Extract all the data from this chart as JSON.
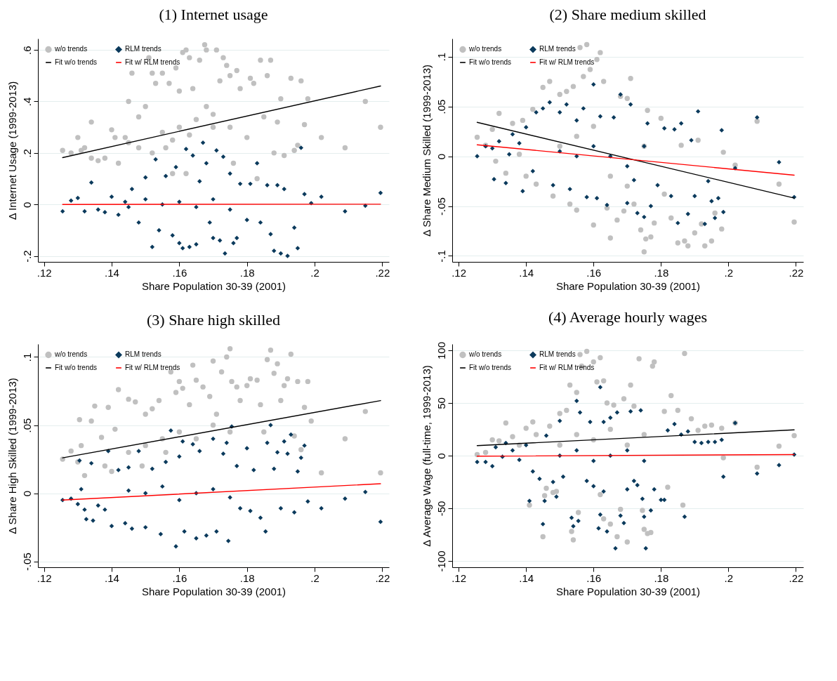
{
  "chart_data": [
    {
      "type": "scatter",
      "title": "(1) Internet usage",
      "xlabel": "Share Population 30-39 (2001)",
      "ylabel": "Δ Internet Usage (1999-2013)",
      "xlim": [
        0.1182,
        0.222
      ],
      "ylim": [
        -0.223,
        0.644
      ],
      "xticks": [
        {
          "value": 0.12,
          "label": ".12"
        },
        {
          "value": 0.14,
          "label": ".14"
        },
        {
          "value": 0.16,
          "label": ".16"
        },
        {
          "value": 0.18,
          "label": ".18"
        },
        {
          "value": 0.2,
          "label": ".2"
        },
        {
          "value": 0.22,
          "label": ".22"
        }
      ],
      "yticks": [
        {
          "value": -0.2,
          "label": "-.2"
        },
        0,
        {
          "value": 0.2,
          "label": ".2"
        },
        {
          "value": 0.4,
          "label": ".4"
        },
        {
          "value": 0.6,
          "label": ".6"
        }
      ],
      "grid": "y",
      "legend": "top left",
      "series": [
        {
          "name": "w/o trends",
          "color": "#c0c0c0",
          "marker": "circle",
          "x": [
            0.1255,
            0.128,
            0.13,
            0.131,
            0.132,
            0.134,
            0.134,
            0.136,
            0.138,
            0.14,
            0.141,
            0.142,
            0.144,
            0.145,
            0.146,
            0.148,
            0.15,
            0.151,
            0.152,
            0.153,
            0.155,
            0.156,
            0.157,
            0.159,
            0.16,
            0.161,
            0.162,
            0.163,
            0.164,
            0.166,
            0.1675,
            0.168,
            0.17,
            0.171,
            0.172,
            0.173,
            0.174,
            0.175,
            0.176,
            0.177,
            0.178,
            0.18,
            0.181,
            0.182,
            0.183,
            0.184,
            0.185,
            0.186,
            0.187,
            0.188,
            0.189,
            0.19,
            0.191,
            0.193,
            0.194,
            0.195,
            0.196,
            0.197,
            0.198,
            0.202,
            0.209,
            0.215,
            0.2195,
            0.155,
            0.16,
            0.165,
            0.17,
            0.158,
            0.148,
            0.152,
            0.163,
            0.168,
            0.175,
            0.145,
            0.162,
            0.158
          ],
          "values": [
            0.21,
            0.2,
            0.26,
            0.21,
            0.22,
            0.32,
            0.18,
            0.17,
            0.18,
            0.29,
            0.26,
            0.16,
            0.26,
            0.4,
            0.51,
            0.34,
            0.38,
            0.57,
            0.51,
            0.47,
            0.51,
            0.22,
            0.47,
            0.53,
            0.44,
            0.59,
            0.6,
            0.57,
            0.45,
            0.56,
            0.62,
            0.6,
            0.3,
            0.6,
            0.48,
            0.57,
            0.54,
            0.5,
            0.16,
            0.52,
            0.45,
            0.26,
            0.49,
            0.47,
            0.1,
            0.56,
            0.34,
            0.5,
            0.56,
            0.2,
            0.32,
            0.41,
            0.19,
            0.49,
            0.21,
            0.23,
            0.48,
            0.31,
            0.41,
            0.26,
            0.22,
            0.4,
            0.3,
            0.28,
            0.3,
            0.33,
            0.35,
            0.25,
            0.22,
            0.2,
            0.27,
            0.38,
            0.3,
            0.24,
            0.12,
            0.12
          ]
        },
        {
          "name": "Fit w/o trends",
          "type": "line",
          "color": "#000000",
          "x": [
            0.1255,
            0.2195
          ],
          "values": [
            0.182,
            0.46
          ]
        },
        {
          "name": "RLM trends",
          "color": "#0b3a5c",
          "marker": "diamond",
          "x": [
            0.1255,
            0.128,
            0.13,
            0.132,
            0.134,
            0.136,
            0.138,
            0.14,
            0.142,
            0.144,
            0.146,
            0.148,
            0.15,
            0.152,
            0.153,
            0.154,
            0.156,
            0.158,
            0.159,
            0.16,
            0.161,
            0.162,
            0.163,
            0.164,
            0.165,
            0.166,
            0.167,
            0.168,
            0.169,
            0.17,
            0.171,
            0.172,
            0.173,
            0.1735,
            0.175,
            0.176,
            0.177,
            0.178,
            0.18,
            0.181,
            0.183,
            0.184,
            0.186,
            0.187,
            0.188,
            0.189,
            0.19,
            0.191,
            0.192,
            0.194,
            0.195,
            0.196,
            0.197,
            0.199,
            0.202,
            0.209,
            0.215,
            0.2195,
            0.155,
            0.16,
            0.165,
            0.17,
            0.175,
            0.15,
            0.145
          ],
          "values": [
            -0.027,
            0.015,
            0.025,
            -0.027,
            0.085,
            -0.02,
            -0.03,
            0.03,
            -0.04,
            0.01,
            0.06,
            -0.07,
            0.105,
            -0.165,
            0.175,
            -0.1,
            0.11,
            -0.12,
            0.145,
            -0.15,
            -0.17,
            0.215,
            -0.165,
            0.19,
            -0.155,
            0.09,
            0.24,
            0.16,
            -0.07,
            -0.13,
            0.21,
            -0.14,
            0.185,
            -0.19,
            0.12,
            -0.15,
            -0.13,
            0.08,
            -0.06,
            0.08,
            0.16,
            -0.07,
            0.075,
            -0.115,
            -0.18,
            0.075,
            -0.19,
            0.06,
            -0.2,
            -0.09,
            -0.17,
            0.22,
            0.04,
            0.005,
            0.03,
            -0.027,
            -0.005,
            0.045,
            0,
            0.01,
            -0.01,
            0.02,
            -0.02,
            0.02,
            -0.01
          ]
        },
        {
          "name": "Fit w/ RLM trends",
          "type": "line",
          "color": "#ff0000",
          "x": [
            0.1255,
            0.2195
          ],
          "values": [
            0,
            0.001
          ]
        }
      ]
    },
    {
      "type": "scatter",
      "title": "(2) Share medium skilled",
      "xlabel": "Share Population 30-39 (2001)",
      "ylabel": "Δ Share Medium Skilled (1999-2013)",
      "xlim": [
        0.1181,
        0.2222
      ],
      "ylim": [
        -0.106,
        0.118
      ],
      "xticks": [
        {
          "value": 0.12,
          "label": ".12"
        },
        {
          "value": 0.14,
          "label": ".14"
        },
        {
          "value": 0.16,
          "label": ".16"
        },
        {
          "value": 0.18,
          "label": ".18"
        },
        {
          "value": 0.2,
          "label": ".2"
        },
        {
          "value": 0.22,
          "label": ".22"
        }
      ],
      "yticks": [
        {
          "value": -0.1,
          "label": "-.1"
        },
        {
          "value": -0.05,
          "label": "-.05"
        },
        0,
        {
          "value": 0.05,
          "label": ".05"
        },
        {
          "value": 0.1,
          "label": ".1"
        }
      ],
      "grid": "y",
      "legend": "top left",
      "series": [
        {
          "name": "w/o trends",
          "color": "#c0c0c0",
          "marker": "circle",
          "x": [
            0.1255,
            0.128,
            0.13,
            0.131,
            0.132,
            0.134,
            0.136,
            0.138,
            0.139,
            0.14,
            0.142,
            0.143,
            0.145,
            0.147,
            0.148,
            0.15,
            0.152,
            0.153,
            0.154,
            0.155,
            0.156,
            0.157,
            0.158,
            0.159,
            0.16,
            0.161,
            0.162,
            0.163,
            0.164,
            0.165,
            0.167,
            0.168,
            0.169,
            0.17,
            0.171,
            0.172,
            0.174,
            0.175,
            0.1755,
            0.176,
            0.177,
            0.178,
            0.18,
            0.181,
            0.183,
            0.185,
            0.186,
            0.187,
            0.188,
            0.19,
            0.191,
            0.192,
            0.193,
            0.195,
            0.196,
            0.198,
            0.1985,
            0.202,
            0.2085,
            0.215,
            0.2195,
            0.155,
            0.16,
            0.165,
            0.17,
            0.15,
            0.175
          ],
          "values": [
            0.019,
            0.011,
            0.027,
            -0.005,
            0.043,
            -0.017,
            0.033,
            0.002,
            0.036,
            -0.02,
            0.047,
            -0.028,
            0.069,
            0.075,
            -0.04,
            0.062,
            0.065,
            -0.048,
            0.07,
            -0.054,
            0.109,
            0.08,
            0.112,
            0.087,
            -0.069,
            0.097,
            0.104,
            0.075,
            -0.052,
            -0.082,
            -0.064,
            0.06,
            -0.055,
            0.058,
            0.078,
            -0.048,
            -0.074,
            -0.096,
            -0.083,
            0.046,
            -0.081,
            -0.067,
            0.038,
            -0.038,
            -0.062,
            -0.087,
            0.011,
            -0.085,
            -0.09,
            -0.077,
            0.016,
            -0.068,
            -0.09,
            -0.085,
            -0.057,
            -0.073,
            0.004,
            -0.009,
            0.035,
            -0.028,
            -0.066,
            0.02,
            0.03,
            -0.02,
            -0.03,
            0.01,
            0.01
          ]
        },
        {
          "name": "Fit w/o trends",
          "type": "line",
          "color": "#000000",
          "x": [
            0.1255,
            0.2195
          ],
          "values": [
            0.034,
            -0.042
          ]
        },
        {
          "name": "RLM trends",
          "color": "#0b3a5c",
          "marker": "diamond",
          "x": [
            0.1255,
            0.128,
            0.13,
            0.1305,
            0.132,
            0.134,
            0.135,
            0.136,
            0.138,
            0.139,
            0.14,
            0.142,
            0.143,
            0.145,
            0.147,
            0.148,
            0.15,
            0.152,
            0.153,
            0.155,
            0.157,
            0.158,
            0.16,
            0.161,
            0.162,
            0.164,
            0.166,
            0.168,
            0.17,
            0.171,
            0.172,
            0.173,
            0.175,
            0.176,
            0.177,
            0.179,
            0.181,
            0.183,
            0.184,
            0.185,
            0.186,
            0.188,
            0.189,
            0.19,
            0.191,
            0.193,
            0.194,
            0.195,
            0.196,
            0.197,
            0.198,
            0.1985,
            0.202,
            0.2085,
            0.215,
            0.2195,
            0.155,
            0.16,
            0.165,
            0.17,
            0.15,
            0.175
          ],
          "values": [
            0,
            0.01,
            0.008,
            -0.023,
            0.015,
            -0.027,
            0.002,
            0.022,
            0.013,
            -0.035,
            0.029,
            -0.015,
            0.044,
            0.048,
            0.054,
            -0.029,
            0.044,
            0.052,
            -0.033,
            0.036,
            0.048,
            -0.041,
            0.072,
            -0.042,
            0.04,
            -0.049,
            0.039,
            0.062,
            -0.047,
            0.052,
            -0.024,
            -0.057,
            -0.061,
            0.033,
            -0.05,
            -0.029,
            0.028,
            -0.04,
            0.027,
            -0.067,
            0.033,
            -0.058,
            0.016,
            -0.04,
            0.045,
            -0.068,
            -0.025,
            -0.045,
            -0.062,
            -0.042,
            0.026,
            -0.056,
            -0.012,
            0.039,
            -0.006,
            -0.041,
            0,
            0.01,
            0,
            -0.01,
            0.005,
            0.01
          ]
        },
        {
          "name": "Fit w/ RLM trends",
          "type": "line",
          "color": "#ff0000",
          "x": [
            0.1255,
            0.2195
          ],
          "values": [
            0.0115,
            -0.019
          ]
        }
      ]
    },
    {
      "type": "scatter",
      "title": "(3) Share high skilled",
      "xlabel": "Share Population 30-39 (2001)",
      "ylabel": "Δ Share High Skilled (1999-2013)",
      "xlim": [
        0.1182,
        0.222
      ],
      "ylim": [
        -0.0543,
        0.1095
      ],
      "xticks": [
        {
          "value": 0.12,
          "label": ".12"
        },
        {
          "value": 0.14,
          "label": ".14"
        },
        {
          "value": 0.16,
          "label": ".16"
        },
        {
          "value": 0.18,
          "label": ".18"
        },
        {
          "value": 0.2,
          "label": ".2"
        },
        {
          "value": 0.22,
          "label": ".22"
        }
      ],
      "yticks": [
        {
          "value": -0.05,
          "label": "-.05"
        },
        0,
        {
          "value": 0.05,
          "label": ".05"
        },
        {
          "value": 0.1,
          "label": ".1"
        }
      ],
      "grid": "y",
      "legend": "top left",
      "series": [
        {
          "name": "w/o trends",
          "color": "#c0c0c0",
          "marker": "circle",
          "x": [
            0.1255,
            0.128,
            0.13,
            0.1305,
            0.131,
            0.132,
            0.134,
            0.135,
            0.137,
            0.138,
            0.139,
            0.14,
            0.141,
            0.142,
            0.145,
            0.147,
            0.149,
            0.15,
            0.152,
            0.154,
            0.156,
            0.1575,
            0.159,
            0.16,
            0.161,
            0.163,
            0.164,
            0.165,
            0.167,
            0.169,
            0.17,
            0.171,
            0.1725,
            0.174,
            0.175,
            0.1755,
            0.177,
            0.178,
            0.18,
            0.181,
            0.183,
            0.184,
            0.185,
            0.186,
            0.187,
            0.188,
            0.189,
            0.19,
            0.191,
            0.192,
            0.193,
            0.194,
            0.195,
            0.196,
            0.197,
            0.198,
            0.199,
            0.202,
            0.209,
            0.215,
            0.2195,
            0.15,
            0.155,
            0.16,
            0.165,
            0.17,
            0.175,
            0.145
          ],
          "values": [
            0.025,
            0.031,
            0.023,
            0.054,
            0.035,
            0.013,
            0.053,
            0.064,
            0.041,
            0.02,
            0.063,
            0.016,
            0.047,
            0.076,
            0.069,
            0.067,
            0.02,
            0.058,
            0.062,
            0.068,
            0.03,
            0.089,
            0.074,
            0.082,
            0.077,
            0.065,
            0.094,
            0.083,
            0.078,
            0.071,
            0.097,
            0.058,
            0.089,
            0.1,
            0.106,
            0.082,
            0.078,
            0.068,
            0.079,
            0.084,
            0.083,
            0.065,
            0.045,
            0.098,
            0.105,
            0.088,
            0.095,
            0.068,
            0.079,
            0.084,
            0.102,
            0.042,
            0.082,
            0.032,
            0.063,
            0.082,
            0.053,
            0.015,
            0.04,
            0.06,
            0.015,
            0.035,
            0.04,
            0.045,
            0.04,
            0.05,
            0.045,
            0.03
          ]
        },
        {
          "name": "Fit w/o trends",
          "type": "line",
          "color": "#000000",
          "x": [
            0.1255,
            0.2195
          ],
          "values": [
            0.026,
            0.068
          ]
        },
        {
          "name": "RLM trends",
          "color": "#0b3a5c",
          "marker": "diamond",
          "x": [
            0.1255,
            0.128,
            0.13,
            0.1305,
            0.131,
            0.132,
            0.1325,
            0.134,
            0.1345,
            0.136,
            0.138,
            0.139,
            0.14,
            0.142,
            0.144,
            0.145,
            0.146,
            0.148,
            0.15,
            0.152,
            0.1545,
            0.156,
            0.1575,
            0.159,
            0.16,
            0.161,
            0.1615,
            0.164,
            0.165,
            0.166,
            0.168,
            0.17,
            0.171,
            0.173,
            0.174,
            0.1745,
            0.1755,
            0.177,
            0.178,
            0.18,
            0.181,
            0.182,
            0.184,
            0.1855,
            0.186,
            0.187,
            0.188,
            0.189,
            0.19,
            0.191,
            0.192,
            0.193,
            0.194,
            0.195,
            0.196,
            0.197,
            0.198,
            0.202,
            0.209,
            0.215,
            0.2195,
            0.15,
            0.155,
            0.16,
            0.165,
            0.17,
            0.175,
            0.145
          ],
          "values": [
            -0.005,
            -0.004,
            -0.008,
            0.024,
            0.003,
            -0.012,
            -0.019,
            0.022,
            -0.02,
            -0.009,
            -0.012,
            0.031,
            -0.024,
            0.017,
            -0.022,
            0.019,
            -0.026,
            0.031,
            -0.025,
            0.018,
            -0.03,
            0.023,
            0.046,
            -0.039,
            0.027,
            0.038,
            -0.028,
            0.036,
            -0.033,
            0.031,
            -0.031,
            0.04,
            -0.028,
            0.029,
            0.037,
            -0.035,
            0.049,
            0.02,
            -0.011,
            0.033,
            -0.013,
            0.017,
            -0.018,
            -0.028,
            0.037,
            0.05,
            0.018,
            0.03,
            -0.011,
            0.038,
            0.029,
            0.043,
            -0.014,
            0.016,
            0.026,
            0.035,
            -0.006,
            -0.011,
            -0.004,
            0.001,
            -0.021,
            0,
            0.005,
            -0.005,
            0,
            0.003,
            -0.003,
            0.002
          ]
        },
        {
          "name": "Fit w/ RLM trends",
          "type": "line",
          "color": "#ff0000",
          "x": [
            0.1255,
            0.2195
          ],
          "values": [
            -0.005,
            0.007
          ]
        }
      ]
    },
    {
      "type": "scatter",
      "title": "(4) Average hourly wages",
      "xlabel": "Share Population 30-39 (2001)",
      "ylabel": "Δ Average Wage (full-time, 1999-2013)",
      "xlim": [
        0.1181,
        0.2222
      ],
      "ylim": [
        -106,
        106
      ],
      "xticks": [
        {
          "value": 0.12,
          "label": ".12"
        },
        {
          "value": 0.14,
          "label": ".14"
        },
        {
          "value": 0.16,
          "label": ".16"
        },
        {
          "value": 0.18,
          "label": ".18"
        },
        {
          "value": 0.2,
          "label": ".2"
        },
        {
          "value": 0.22,
          "label": ".22"
        }
      ],
      "yticks": [
        -100,
        -50,
        0,
        50,
        100
      ],
      "grid": "y",
      "legend": "top left",
      "series": [
        {
          "name": "w/o trends",
          "color": "#c0c0c0",
          "marker": "circle",
          "x": [
            0.1255,
            0.128,
            0.13,
            0.132,
            0.134,
            0.136,
            0.138,
            0.14,
            0.141,
            0.142,
            0.143,
            0.145,
            0.1455,
            0.146,
            0.147,
            0.148,
            0.149,
            0.15,
            0.152,
            0.153,
            0.1535,
            0.154,
            0.155,
            0.1555,
            0.156,
            0.1565,
            0.158,
            0.16,
            0.161,
            0.162,
            0.163,
            0.162,
            0.163,
            0.164,
            0.165,
            0.166,
            0.167,
            0.168,
            0.169,
            0.17,
            0.171,
            0.172,
            0.1735,
            0.1745,
            0.175,
            0.176,
            0.177,
            0.1775,
            0.178,
            0.181,
            0.182,
            0.183,
            0.185,
            0.187,
            0.1865,
            0.189,
            0.191,
            0.193,
            0.195,
            0.198,
            0.1985,
            0.202,
            0.2085,
            0.215,
            0.2195,
            0.15,
            0.155,
            0.16,
            0.165,
            0.17,
            0.175
          ],
          "values": [
            1,
            3,
            15,
            14,
            31,
            18,
            10,
            26,
            -47,
            32,
            20,
            -77,
            -38,
            -31,
            28,
            -35,
            -34,
            40,
            43,
            67,
            -72,
            -80,
            60,
            -54,
            96,
            85,
            99,
            89,
            70,
            93,
            71,
            -37,
            -60,
            50,
            -65,
            48,
            -77,
            -51,
            54,
            -82,
            67,
            47,
            92,
            -52,
            -70,
            -74,
            -73,
            85,
            89,
            42,
            -30,
            57,
            43,
            97,
            -47,
            35,
            24,
            28,
            29,
            26,
            -2,
            31,
            -11,
            9,
            19,
            10,
            20,
            15,
            25,
            10,
            20
          ]
        },
        {
          "name": "Fit w/o trends",
          "type": "line",
          "color": "#000000",
          "x": [
            0.1255,
            0.2195
          ],
          "values": [
            9.5,
            24.5
          ]
        },
        {
          "name": "RLM trends",
          "color": "#0b3a5c",
          "marker": "diamond",
          "x": [
            0.1255,
            0.128,
            0.13,
            0.131,
            0.133,
            0.134,
            0.136,
            0.138,
            0.14,
            0.141,
            0.142,
            0.144,
            0.145,
            0.1455,
            0.146,
            0.148,
            0.149,
            0.15,
            0.151,
            0.1535,
            0.154,
            0.155,
            0.1555,
            0.156,
            0.158,
            0.159,
            0.16,
            0.162,
            0.1615,
            0.162,
            0.163,
            0.163,
            0.164,
            0.165,
            0.1665,
            0.167,
            0.168,
            0.169,
            0.17,
            0.171,
            0.172,
            0.173,
            0.174,
            0.1745,
            0.175,
            0.1755,
            0.177,
            0.178,
            0.18,
            0.181,
            0.182,
            0.184,
            0.186,
            0.187,
            0.188,
            0.19,
            0.192,
            0.194,
            0.196,
            0.198,
            0.1985,
            0.202,
            0.2085,
            0.215,
            0.2195,
            0.15,
            0.155,
            0.16,
            0.165,
            0.17,
            0.175
          ],
          "values": [
            -6,
            -6,
            -10,
            8,
            -1,
            12,
            5,
            -4,
            10,
            -43,
            -15,
            -22,
            -65,
            -43,
            19,
            -25,
            -39,
            33,
            -20,
            -59,
            -67,
            52,
            -62,
            41,
            -24,
            32,
            -29,
            65,
            -69,
            -56,
            32,
            -34,
            -72,
            36,
            -88,
            41,
            -57,
            -64,
            -32,
            42,
            -24,
            -28,
            43,
            -41,
            -58,
            -88,
            -52,
            -32,
            -42,
            -42,
            24,
            30,
            20,
            -58,
            23,
            13,
            12,
            13,
            13,
            15,
            -20,
            31,
            -17,
            -9,
            1,
            0,
            5,
            -5,
            0,
            5,
            -5
          ]
        },
        {
          "name": "Fit w/ RLM trends",
          "type": "line",
          "color": "#ff0000",
          "x": [
            0.1255,
            0.2195
          ],
          "values": [
            -0.5,
            1
          ]
        }
      ]
    }
  ]
}
